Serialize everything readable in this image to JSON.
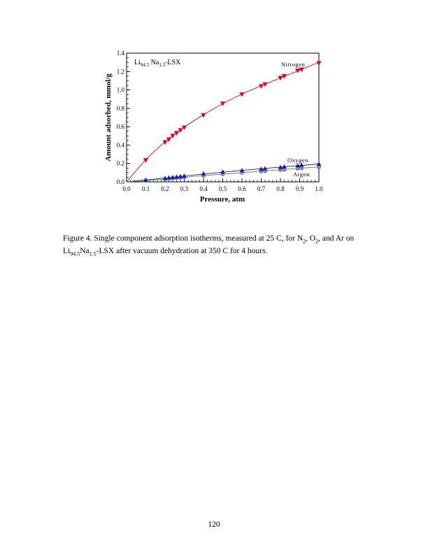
{
  "chart_data": {
    "type": "scatter",
    "title": {
      "parts": [
        {
          "text": "Li",
          "sub": false
        },
        {
          "text": "94.5",
          "sub": true
        },
        {
          "text": " Na",
          "sub": false
        },
        {
          "text": "1.5",
          "sub": true
        },
        {
          "text": "-LSX",
          "sub": false
        }
      ]
    },
    "xlabel": "Pressure, atm",
    "ylabel": "Amount adsorbed, mmol/g",
    "xlim": [
      0.0,
      1.0
    ],
    "ylim": [
      0.0,
      1.4
    ],
    "x_ticks": [
      "0.0",
      "0.1",
      "0.2",
      "0.3",
      "0.4",
      "0.5",
      "0.6",
      "0.7",
      "0.8",
      "0.9",
      "1.0"
    ],
    "y_ticks": [
      "0.0",
      "0.2",
      "0.4",
      "0.6",
      "0.8",
      "1.0",
      "1.2",
      "1.4"
    ],
    "grid": false,
    "series": [
      {
        "name": "Nitrogen",
        "color": "#e8001a",
        "marker": "triangle-down",
        "x": [
          0.1,
          0.2,
          0.22,
          0.24,
          0.26,
          0.28,
          0.3,
          0.4,
          0.5,
          0.6,
          0.7,
          0.72,
          0.8,
          0.82,
          0.89,
          0.91,
          1.0
        ],
        "y": [
          0.235,
          0.43,
          0.46,
          0.5,
          0.53,
          0.56,
          0.59,
          0.725,
          0.85,
          0.95,
          1.04,
          1.06,
          1.13,
          1.15,
          1.21,
          1.22,
          1.29
        ],
        "fit": [
          [
            0.0,
            0.0
          ],
          [
            0.1,
            0.24
          ],
          [
            0.2,
            0.435
          ],
          [
            0.3,
            0.595
          ],
          [
            0.4,
            0.73
          ],
          [
            0.5,
            0.85
          ],
          [
            0.6,
            0.955
          ],
          [
            0.7,
            1.045
          ],
          [
            0.8,
            1.13
          ],
          [
            0.9,
            1.215
          ],
          [
            1.0,
            1.3
          ]
        ]
      },
      {
        "name": "Oxygen",
        "color": "#1414c8",
        "marker": "triangle-up",
        "x": [
          0.1,
          0.2,
          0.22,
          0.24,
          0.26,
          0.28,
          0.3,
          0.4,
          0.5,
          0.6,
          0.7,
          0.72,
          0.8,
          0.82,
          0.89,
          0.91,
          1.0
        ],
        "y": [
          0.02,
          0.04,
          0.045,
          0.05,
          0.055,
          0.06,
          0.065,
          0.09,
          0.11,
          0.125,
          0.14,
          0.145,
          0.16,
          0.165,
          0.178,
          0.182,
          0.195
        ],
        "fit": [
          [
            0.0,
            0.0
          ],
          [
            0.2,
            0.042
          ],
          [
            0.4,
            0.085
          ],
          [
            0.6,
            0.125
          ],
          [
            0.8,
            0.16
          ],
          [
            1.0,
            0.195
          ]
        ]
      },
      {
        "name": "Argon",
        "color": "#8a8a8a",
        "fit_color": "#3a9a3a",
        "marker": "circle",
        "x": [
          0.1,
          0.2,
          0.22,
          0.24,
          0.26,
          0.28,
          0.3,
          0.4,
          0.5,
          0.6,
          0.7,
          0.72,
          0.8,
          0.82,
          0.89,
          0.91,
          1.0
        ],
        "y": [
          0.015,
          0.03,
          0.034,
          0.038,
          0.042,
          0.046,
          0.05,
          0.068,
          0.085,
          0.1,
          0.115,
          0.118,
          0.13,
          0.134,
          0.145,
          0.148,
          0.16
        ],
        "fit": [
          [
            0.0,
            0.0
          ],
          [
            0.2,
            0.032
          ],
          [
            0.4,
            0.068
          ],
          [
            0.6,
            0.1
          ],
          [
            0.8,
            0.132
          ],
          [
            1.0,
            0.162
          ]
        ]
      }
    ]
  },
  "caption": {
    "p1": "Figure 4.  Single component adsorption isotherms, measured at 25 ",
    "p2": "C, for N",
    "s1": "2",
    "p3": ", O",
    "s2": "2",
    "p4": ", and Ar on Li",
    "s3": "94.5",
    "p5": "Na",
    "s4": "1.5",
    "p6": "-LSX after vacuum dehydration at 350 ",
    "p7": "C for 4 hours."
  },
  "page_number": "120"
}
